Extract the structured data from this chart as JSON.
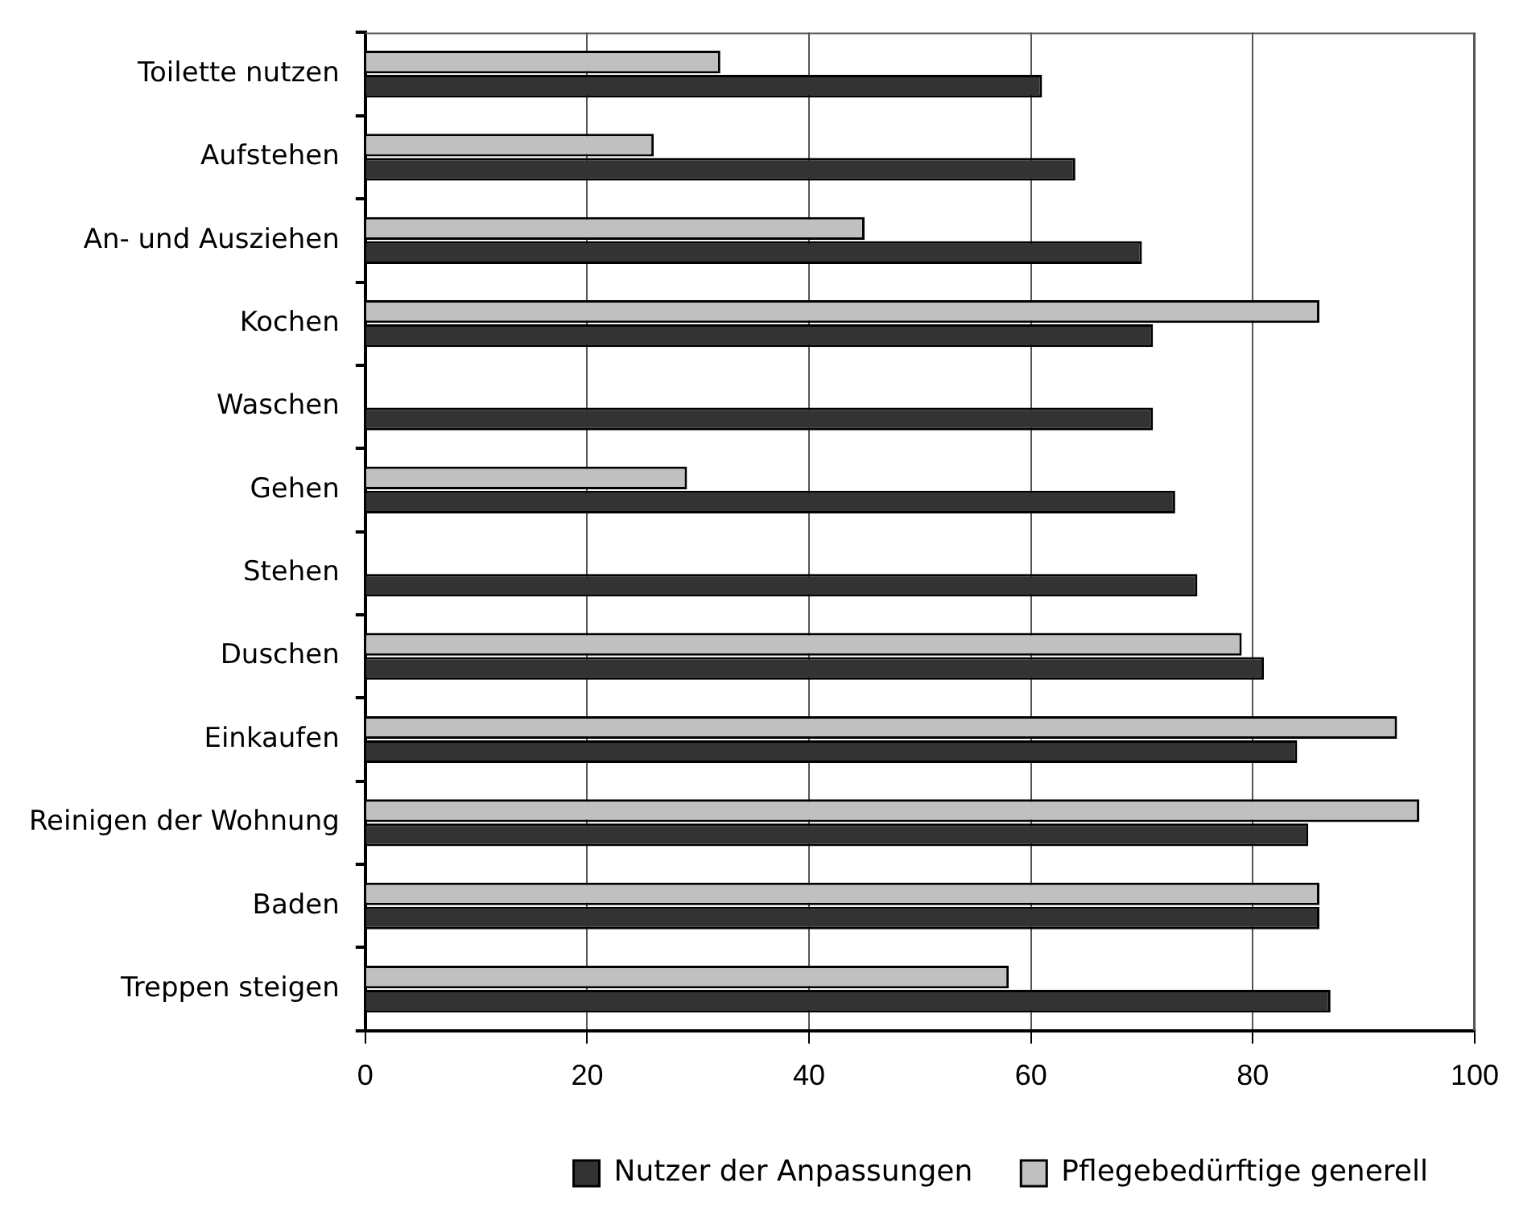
{
  "chart_data": {
    "type": "bar",
    "orientation": "horizontal",
    "categories": [
      "Toilette nutzen",
      "Aufstehen",
      "An- und Ausziehen",
      "Kochen",
      "Waschen",
      "Gehen",
      "Stehen",
      "Duschen",
      "Einkaufen",
      "Reinigen der Wohnung",
      "Baden",
      "Treppen steigen"
    ],
    "series": [
      {
        "name": "Nutzer der Anpassungen",
        "color": "#333333",
        "values": [
          61,
          64,
          70,
          71,
          71,
          73,
          75,
          81,
          84,
          85,
          86,
          87
        ]
      },
      {
        "name": "Pflegebedürftige generell",
        "color": "#c0c0c0",
        "values": [
          32,
          26,
          45,
          86,
          null,
          29,
          null,
          79,
          93,
          95,
          86,
          58
        ]
      }
    ],
    "xlim": [
      0,
      100
    ],
    "xticks": [
      0,
      20,
      40,
      60,
      80,
      100
    ],
    "grid": "x",
    "legend": "bottom"
  }
}
